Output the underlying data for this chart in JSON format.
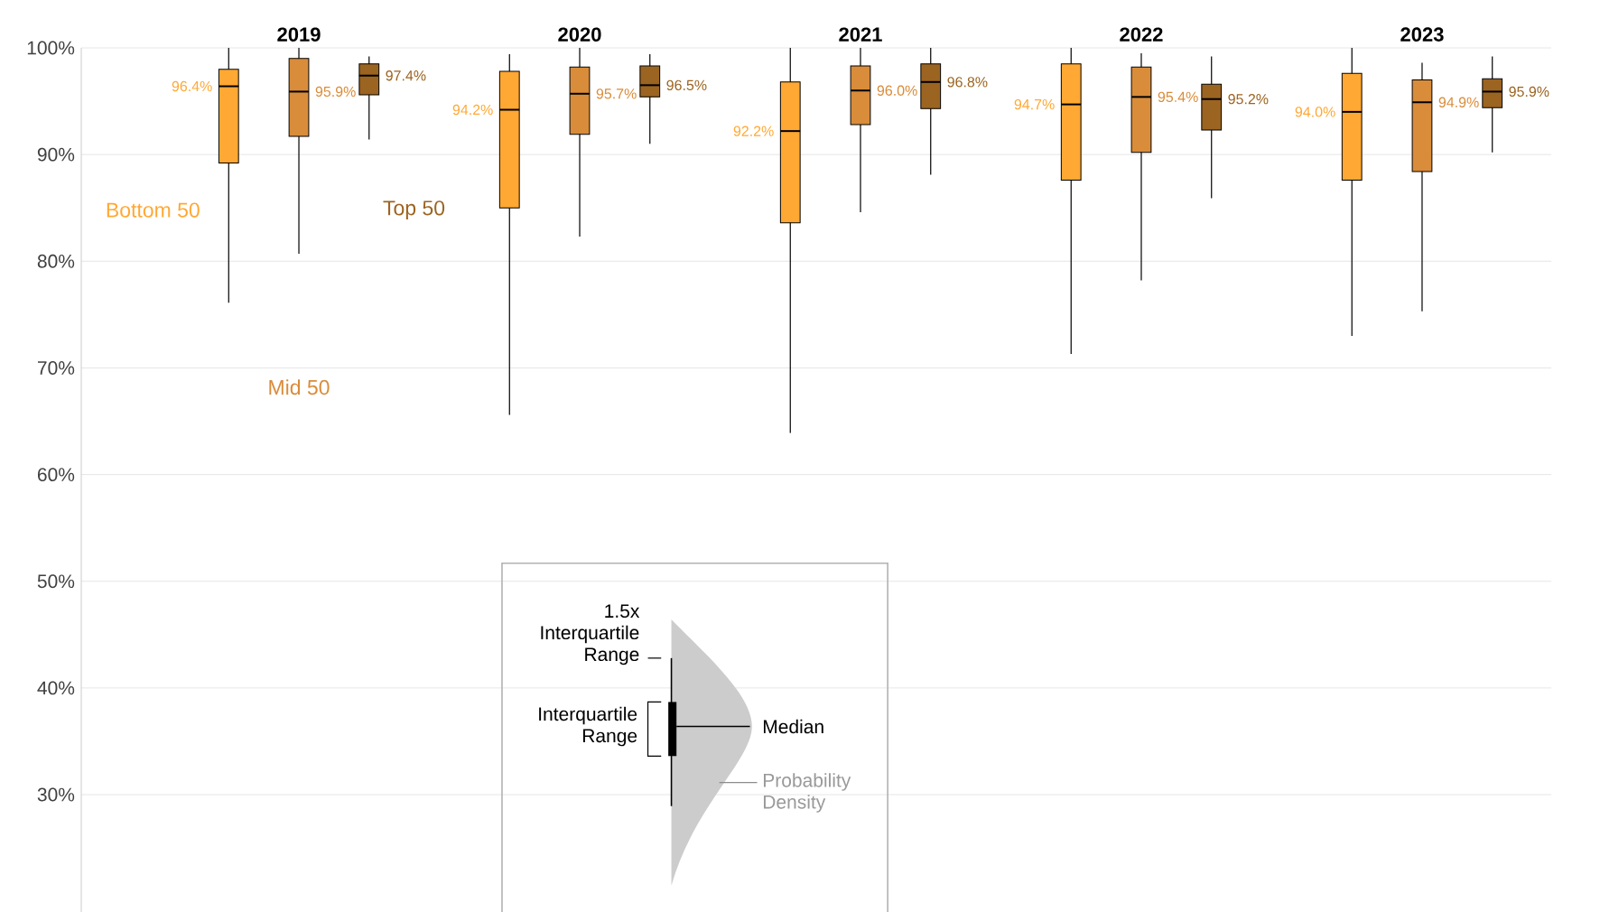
{
  "chart_data": {
    "type": "box",
    "categories": [
      "2019",
      "2020",
      "2021",
      "2022",
      "2023"
    ],
    "ylim": [
      19,
      100
    ],
    "yticks": [
      {
        "value": 30,
        "label": "30%"
      },
      {
        "value": 40,
        "label": "40%"
      },
      {
        "value": 50,
        "label": "50%"
      },
      {
        "value": 60,
        "label": "60%"
      },
      {
        "value": 70,
        "label": "70%"
      },
      {
        "value": 80,
        "label": "80%"
      },
      {
        "value": 90,
        "label": "90%"
      },
      {
        "value": 100,
        "label": "100%"
      }
    ],
    "grid": "y",
    "annotations": [
      "1.5x Interquartile Range",
      "Interquartile Range",
      "Median",
      "Probability Density"
    ],
    "series": [
      {
        "name": "Bottom 50",
        "color": "#ffa833",
        "value_labels": [
          "96.4%",
          "94.2%",
          "92.2%",
          "94.7%",
          "94.0%"
        ],
        "boxes": [
          {
            "low": 76.1,
            "q1": 89.2,
            "median": 96.4,
            "q3": 98.0,
            "high": 100
          },
          {
            "low": 65.6,
            "q1": 85.0,
            "median": 94.2,
            "q3": 97.8,
            "high": 99.4
          },
          {
            "low": 63.9,
            "q1": 83.6,
            "median": 92.2,
            "q3": 96.8,
            "high": 100
          },
          {
            "low": 71.3,
            "q1": 87.6,
            "median": 94.7,
            "q3": 98.5,
            "high": 100
          },
          {
            "low": 73.0,
            "q1": 87.6,
            "median": 94.0,
            "q3": 97.6,
            "high": 100
          }
        ]
      },
      {
        "name": "Mid 50",
        "color": "#d98c3a",
        "value_labels": [
          "95.9%",
          "95.7%",
          "96.0%",
          "95.4%",
          "94.9%"
        ],
        "boxes": [
          {
            "low": 80.7,
            "q1": 91.7,
            "median": 95.9,
            "q3": 99.0,
            "high": 100
          },
          {
            "low": 82.3,
            "q1": 91.9,
            "median": 95.7,
            "q3": 98.2,
            "high": 100
          },
          {
            "low": 84.6,
            "q1": 92.8,
            "median": 96.0,
            "q3": 98.3,
            "high": 100
          },
          {
            "low": 78.2,
            "q1": 90.2,
            "median": 95.4,
            "q3": 98.2,
            "high": 99.5
          },
          {
            "low": 75.3,
            "q1": 88.4,
            "median": 94.9,
            "q3": 97.0,
            "high": 98.6
          }
        ]
      },
      {
        "name": "Top 50",
        "color": "#9c6421",
        "value_labels": [
          "97.4%",
          "96.5%",
          "96.8%",
          "95.2%",
          "95.9%"
        ],
        "boxes": [
          {
            "low": 91.4,
            "q1": 95.6,
            "median": 97.4,
            "q3": 98.5,
            "high": 99.2
          },
          {
            "low": 91.0,
            "q1": 95.4,
            "median": 96.5,
            "q3": 98.3,
            "high": 99.4
          },
          {
            "low": 88.1,
            "q1": 94.3,
            "median": 96.8,
            "q3": 98.5,
            "high": 100
          },
          {
            "low": 85.9,
            "q1": 92.3,
            "median": 95.2,
            "q3": 96.6,
            "high": 99.2
          },
          {
            "low": 90.2,
            "q1": 94.4,
            "median": 95.9,
            "q3": 97.1,
            "high": 99.2
          }
        ]
      }
    ]
  }
}
